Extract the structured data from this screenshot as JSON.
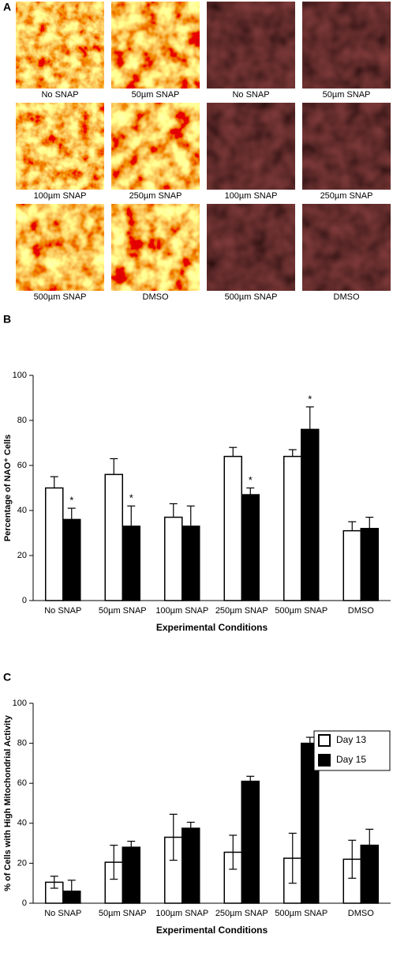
{
  "panel_a": {
    "label": "A",
    "captions": [
      "No SNAP",
      "50µm SNAP",
      "No SNAP",
      "50µm SNAP",
      "100µm SNAP",
      "250µm SNAP",
      "100µm SNAP",
      "250µm SNAP",
      "500µm SNAP",
      "DMSO",
      "500µm SNAP",
      "DMSO"
    ]
  },
  "chart_data": [
    {
      "type": "bar",
      "panel_label": "B",
      "y_label": "Percentage of NAO⁺ Cells",
      "x_label": "Experimental Conditions",
      "categories": [
        "No SNAP",
        "50µm SNAP",
        "100µm SNAP",
        "250µm SNAP",
        "500µm SNAP",
        "DMSO"
      ],
      "series": [
        {
          "color": "#ffffff",
          "values": [
            50,
            56,
            37,
            64,
            64,
            31
          ],
          "errors": [
            5,
            7,
            6,
            4,
            3,
            4
          ]
        },
        {
          "color": "#000000",
          "values": [
            36,
            33,
            33,
            47,
            76,
            32
          ],
          "errors": [
            5,
            9,
            9,
            3,
            10,
            5
          ],
          "significance": [
            "*",
            "*",
            null,
            "*",
            "*",
            null
          ]
        }
      ],
      "error_bars": "upper",
      "ylim": [
        0,
        100
      ],
      "yticks": [
        0,
        20,
        40,
        60,
        80,
        100
      ]
    },
    {
      "type": "bar",
      "panel_label": "C",
      "y_label": "% of Cells with High Mitochondrial Activity",
      "x_label": "Experimental Conditions",
      "categories": [
        "No SNAP",
        "50µm SNAP",
        "100µm SNAP",
        "250µm SNAP",
        "500µm SNAP",
        "DMSO"
      ],
      "series": [
        {
          "name": "Day 13",
          "color": "#ffffff",
          "values": [
            10.5,
            20.5,
            33,
            25.5,
            22.5,
            22
          ],
          "errors": [
            3,
            8.5,
            11.5,
            8.5,
            12.5,
            9.5
          ]
        },
        {
          "name": "Day 15",
          "color": "#000000",
          "values": [
            6,
            28,
            37.5,
            61,
            80,
            29
          ],
          "errors": [
            5.5,
            3,
            3,
            2.5,
            3,
            8
          ]
        }
      ],
      "error_bars": "both",
      "legend": "top-right",
      "ylim": [
        0,
        100
      ],
      "yticks": [
        0,
        20,
        40,
        60,
        80,
        100
      ]
    }
  ]
}
